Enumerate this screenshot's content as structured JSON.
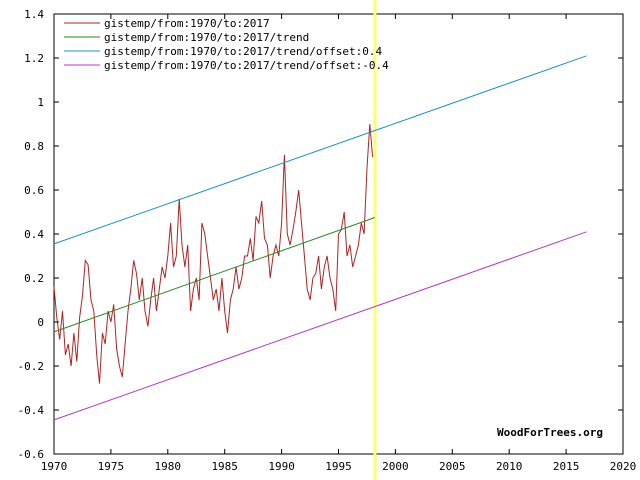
{
  "chart_data": {
    "type": "line",
    "title": "",
    "xlabel": "",
    "ylabel": "",
    "xlim": [
      1970,
      2020
    ],
    "ylim": [
      -0.6,
      1.4
    ],
    "x_ticks": [
      1970,
      1975,
      1980,
      1985,
      1990,
      1995,
      2000,
      2005,
      2010,
      2015,
      2020
    ],
    "y_ticks": [
      -0.6,
      -0.4,
      -0.2,
      0,
      0.2,
      0.4,
      0.6,
      0.8,
      1,
      1.2,
      1.4
    ],
    "y_tick_labels": [
      "-0.6",
      "-0.4",
      "-0.2",
      "0",
      "0.2",
      "0.4",
      "0.6",
      "0.8",
      "1",
      "1.2",
      "1.4"
    ],
    "grid": false,
    "legend_position": "top-left",
    "credit": "WoodForTrees.org",
    "highlight": {
      "x": 1998.2,
      "color": "#ffff66"
    },
    "series": [
      {
        "name": "gistemp/from:1970/to:2017",
        "color": "#b22222",
        "x": [
          1970.0,
          1970.25,
          1970.5,
          1970.75,
          1971.0,
          1971.25,
          1971.5,
          1971.75,
          1972.0,
          1972.25,
          1972.5,
          1972.75,
          1973.0,
          1973.25,
          1973.5,
          1973.75,
          1974.0,
          1974.25,
          1974.5,
          1974.75,
          1975.0,
          1975.25,
          1975.5,
          1975.75,
          1976.0,
          1976.25,
          1976.5,
          1976.75,
          1977.0,
          1977.25,
          1977.5,
          1977.75,
          1978.0,
          1978.25,
          1978.5,
          1978.75,
          1979.0,
          1979.25,
          1979.5,
          1979.75,
          1980.0,
          1980.25,
          1980.5,
          1980.75,
          1981.0,
          1981.25,
          1981.5,
          1981.75,
          1982.0,
          1982.25,
          1982.5,
          1982.75,
          1983.0,
          1983.25,
          1983.5,
          1983.75,
          1984.0,
          1984.25,
          1984.5,
          1984.75,
          1985.0,
          1985.25,
          1985.5,
          1985.75,
          1986.0,
          1986.25,
          1986.5,
          1986.75,
          1987.0,
          1987.25,
          1987.5,
          1987.75,
          1988.0,
          1988.25,
          1988.5,
          1988.75,
          1989.0,
          1989.25,
          1989.5,
          1989.75,
          1990.0,
          1990.25,
          1990.5,
          1990.75,
          1991.0,
          1991.25,
          1991.5,
          1991.75,
          1992.0,
          1992.25,
          1992.5,
          1992.75,
          1993.0,
          1993.25,
          1993.5,
          1993.75,
          1994.0,
          1994.25,
          1994.5,
          1994.75,
          1995.0,
          1995.25,
          1995.5,
          1995.75,
          1996.0,
          1996.25,
          1996.5,
          1996.75,
          1997.0,
          1997.25,
          1997.5,
          1997.75,
          1998.0
        ],
        "y": [
          0.16,
          0.02,
          -0.08,
          0.05,
          -0.15,
          -0.1,
          -0.2,
          -0.05,
          -0.18,
          0.02,
          0.12,
          0.28,
          0.26,
          0.1,
          0.05,
          -0.15,
          -0.28,
          -0.05,
          -0.1,
          0.05,
          0.0,
          0.08,
          -0.12,
          -0.2,
          -0.25,
          -0.1,
          0.05,
          0.15,
          0.28,
          0.22,
          0.1,
          0.2,
          0.05,
          -0.02,
          0.1,
          0.2,
          0.05,
          0.15,
          0.25,
          0.2,
          0.3,
          0.45,
          0.25,
          0.3,
          0.56,
          0.35,
          0.25,
          0.35,
          0.05,
          0.15,
          0.2,
          0.1,
          0.45,
          0.4,
          0.3,
          0.2,
          0.1,
          0.15,
          0.05,
          0.2,
          0.05,
          -0.05,
          0.1,
          0.15,
          0.25,
          0.15,
          0.2,
          0.3,
          0.3,
          0.38,
          0.28,
          0.48,
          0.45,
          0.55,
          0.38,
          0.35,
          0.2,
          0.3,
          0.35,
          0.3,
          0.45,
          0.76,
          0.4,
          0.35,
          0.42,
          0.5,
          0.6,
          0.45,
          0.3,
          0.15,
          0.1,
          0.2,
          0.22,
          0.3,
          0.15,
          0.25,
          0.3,
          0.2,
          0.15,
          0.05,
          0.4,
          0.42,
          0.5,
          0.3,
          0.35,
          0.25,
          0.3,
          0.35,
          0.45,
          0.4,
          0.7,
          0.9,
          0.75
        ]
      },
      {
        "name": "gistemp/from:1970/to:2017/trend",
        "color": "#228b22",
        "x": [
          1970,
          1998.2
        ],
        "y": [
          -0.045,
          0.475
        ]
      },
      {
        "name": "gistemp/from:1970/to:2017/trend/offset:0.4",
        "color": "#1e90c8",
        "x": [
          1970,
          2016.8
        ],
        "y": [
          0.355,
          1.21
        ]
      },
      {
        "name": "gistemp/from:1970/to:2017/trend/offset:-0.4",
        "color": "#b03ac8",
        "x": [
          1970,
          2016.8
        ],
        "y": [
          -0.445,
          0.41
        ]
      }
    ]
  }
}
